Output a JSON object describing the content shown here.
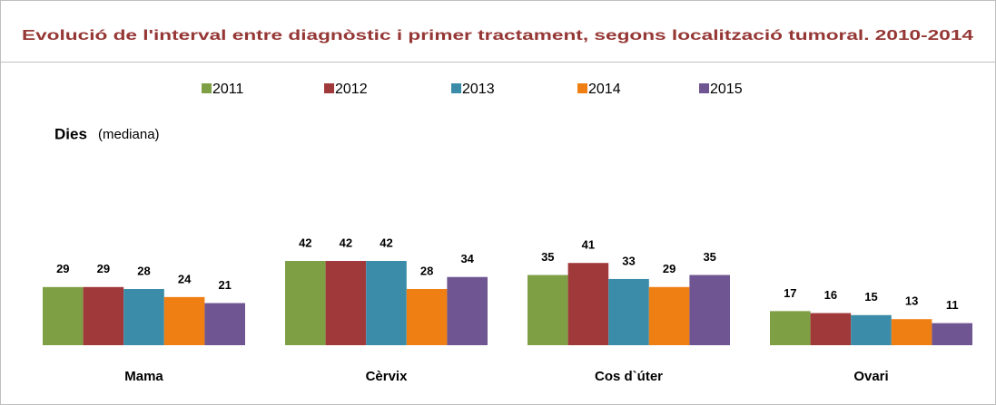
{
  "chart_data": {
    "type": "bar",
    "title": "Evolució de l'interval entre diagnòstic i primer tractament, segons localització tumoral. 2010-2014",
    "y_label": "Dies",
    "y_label_note": "(mediana)",
    "categories": [
      "Mama",
      "Cèrvix",
      "Cos d`úter",
      "Ovari"
    ],
    "series": [
      {
        "name": "2011",
        "color": "#7f9f45",
        "values": [
          29,
          42,
          35,
          17
        ]
      },
      {
        "name": "2012",
        "color": "#a0393a",
        "values": [
          29,
          42,
          41,
          16
        ]
      },
      {
        "name": "2013",
        "color": "#3a8ca8",
        "values": [
          28,
          42,
          33,
          15
        ]
      },
      {
        "name": "2014",
        "color": "#f07f13",
        "values": [
          24,
          28,
          29,
          13
        ]
      },
      {
        "name": "2015",
        "color": "#6f5591",
        "values": [
          21,
          34,
          35,
          11
        ]
      }
    ],
    "legend": "top"
  }
}
